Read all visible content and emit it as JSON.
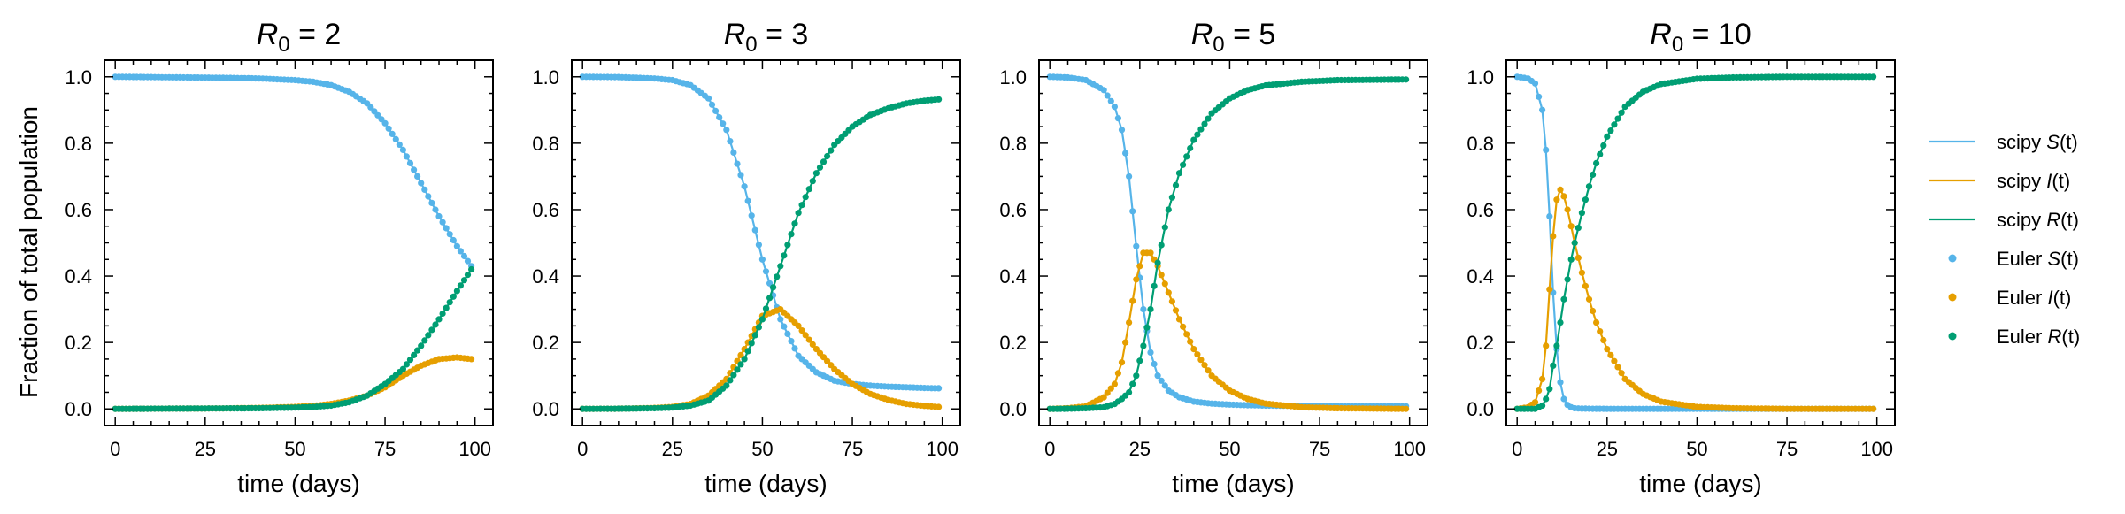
{
  "figure": {
    "ylabel": "Fraction of total population",
    "xlabel": "time (days)"
  },
  "legend": {
    "placement": "right",
    "entries": [
      {
        "prefix": "scipy ",
        "var": "S",
        "suffix": "(t)",
        "marker": "line",
        "color": "#56B4E9"
      },
      {
        "prefix": "scipy ",
        "var": "I",
        "suffix": "(t)",
        "marker": "line",
        "color": "#E69F00"
      },
      {
        "prefix": "scipy ",
        "var": "R",
        "suffix": "(t)",
        "marker": "line",
        "color": "#009E73"
      },
      {
        "prefix": "Euler ",
        "var": "S",
        "suffix": "(t)",
        "marker": "dot",
        "color": "#56B4E9"
      },
      {
        "prefix": "Euler ",
        "var": "I",
        "suffix": "(t)",
        "marker": "dot",
        "color": "#E69F00"
      },
      {
        "prefix": "Euler ",
        "var": "R",
        "suffix": "(t)",
        "marker": "dot",
        "color": "#009E73"
      }
    ]
  },
  "chart_data": [
    {
      "type": "line",
      "title": {
        "sym": "R",
        "sub": "0",
        "rest": " = 2"
      },
      "xlabel": "time (days)",
      "ylabel": "Fraction of total population",
      "xlim": [
        -3,
        105
      ],
      "ylim": [
        -0.05,
        1.05
      ],
      "xticks": [
        0,
        25,
        50,
        75,
        100
      ],
      "yticks": [
        "0.0",
        "0.2",
        "0.4",
        "0.6",
        "0.8",
        "1.0"
      ],
      "x": [
        0,
        10,
        20,
        30,
        40,
        50,
        55,
        60,
        65,
        70,
        75,
        80,
        85,
        90,
        95,
        99
      ],
      "series": [
        {
          "label": "S(t)",
          "color": "#56B4E9",
          "values": [
            1.0,
            0.999,
            0.998,
            0.997,
            0.995,
            0.99,
            0.985,
            0.975,
            0.955,
            0.92,
            0.86,
            0.78,
            0.68,
            0.58,
            0.49,
            0.43
          ]
        },
        {
          "label": "I(t)",
          "color": "#E69F00",
          "values": [
            0.0,
            0.0005,
            0.001,
            0.0015,
            0.003,
            0.006,
            0.009,
            0.015,
            0.025,
            0.04,
            0.065,
            0.1,
            0.13,
            0.15,
            0.155,
            0.15
          ]
        },
        {
          "label": "R(t)",
          "color": "#009E73",
          "values": [
            0.0,
            0.0005,
            0.001,
            0.0015,
            0.002,
            0.004,
            0.006,
            0.01,
            0.02,
            0.04,
            0.075,
            0.12,
            0.19,
            0.27,
            0.355,
            0.42
          ]
        }
      ]
    },
    {
      "type": "line",
      "title": {
        "sym": "R",
        "sub": "0",
        "rest": " = 3"
      },
      "xlabel": "time (days)",
      "xlim": [
        -3,
        105
      ],
      "ylim": [
        -0.05,
        1.05
      ],
      "xticks": [
        0,
        25,
        50,
        75,
        100
      ],
      "yticks": [
        "0.0",
        "0.2",
        "0.4",
        "0.6",
        "0.8",
        "1.0"
      ],
      "x": [
        0,
        10,
        20,
        25,
        30,
        35,
        40,
        45,
        50,
        55,
        60,
        65,
        70,
        75,
        80,
        85,
        90,
        95,
        99
      ],
      "series": [
        {
          "label": "S(t)",
          "color": "#56B4E9",
          "values": [
            1.0,
            0.999,
            0.995,
            0.99,
            0.975,
            0.935,
            0.84,
            0.67,
            0.45,
            0.27,
            0.16,
            0.11,
            0.085,
            0.075,
            0.07,
            0.067,
            0.065,
            0.063,
            0.062
          ]
        },
        {
          "label": "I(t)",
          "color": "#E69F00",
          "values": [
            0.0,
            0.0005,
            0.003,
            0.006,
            0.015,
            0.04,
            0.09,
            0.18,
            0.28,
            0.3,
            0.25,
            0.18,
            0.12,
            0.075,
            0.045,
            0.027,
            0.015,
            0.009,
            0.006
          ]
        },
        {
          "label": "R(t)",
          "color": "#009E73",
          "values": [
            0.0,
            0.0005,
            0.002,
            0.004,
            0.01,
            0.025,
            0.07,
            0.15,
            0.27,
            0.43,
            0.59,
            0.71,
            0.795,
            0.85,
            0.885,
            0.905,
            0.92,
            0.928,
            0.932
          ]
        }
      ]
    },
    {
      "type": "line",
      "title": {
        "sym": "R",
        "sub": "0",
        "rest": " = 5"
      },
      "xlabel": "time (days)",
      "xlim": [
        -3,
        105
      ],
      "ylim": [
        -0.05,
        1.05
      ],
      "xticks": [
        0,
        25,
        50,
        75,
        100
      ],
      "yticks": [
        "0.0",
        "0.2",
        "0.4",
        "0.6",
        "0.8",
        "1.0"
      ],
      "x": [
        0,
        5,
        10,
        15,
        18,
        20,
        22,
        24,
        26,
        28,
        30,
        33,
        36,
        40,
        45,
        50,
        55,
        60,
        70,
        80,
        90,
        99
      ],
      "series": [
        {
          "label": "S(t)",
          "color": "#56B4E9",
          "values": [
            1.0,
            0.998,
            0.99,
            0.96,
            0.91,
            0.84,
            0.7,
            0.49,
            0.3,
            0.17,
            0.1,
            0.055,
            0.035,
            0.022,
            0.016,
            0.013,
            0.011,
            0.01,
            0.009,
            0.008,
            0.008,
            0.008
          ]
        },
        {
          "label": "I(t)",
          "color": "#E69F00",
          "values": [
            0.0,
            0.002,
            0.008,
            0.035,
            0.075,
            0.14,
            0.26,
            0.39,
            0.47,
            0.47,
            0.43,
            0.35,
            0.27,
            0.18,
            0.1,
            0.055,
            0.03,
            0.016,
            0.005,
            0.002,
            0.001,
            0.0
          ]
        },
        {
          "label": "R(t)",
          "color": "#009E73",
          "values": [
            0.0,
            0.0005,
            0.002,
            0.005,
            0.015,
            0.03,
            0.05,
            0.1,
            0.19,
            0.3,
            0.44,
            0.6,
            0.71,
            0.81,
            0.89,
            0.935,
            0.96,
            0.974,
            0.985,
            0.99,
            0.991,
            0.992
          ]
        }
      ]
    },
    {
      "type": "line",
      "title": {
        "sym": "R",
        "sub": "0",
        "rest": " = 10"
      },
      "xlabel": "time (days)",
      "xlim": [
        -3,
        105
      ],
      "ylim": [
        -0.05,
        1.05
      ],
      "xticks": [
        0,
        25,
        50,
        75,
        100
      ],
      "yticks": [
        "0.0",
        "0.2",
        "0.4",
        "0.6",
        "0.8",
        "1.0"
      ],
      "x": [
        0,
        3,
        5,
        7,
        8,
        9,
        10,
        11,
        12,
        13,
        14,
        15,
        16,
        18,
        20,
        22,
        25,
        30,
        35,
        40,
        50,
        60,
        75,
        99
      ],
      "series": [
        {
          "label": "S(t)",
          "color": "#56B4E9",
          "values": [
            1.0,
            0.995,
            0.98,
            0.9,
            0.78,
            0.58,
            0.35,
            0.18,
            0.08,
            0.03,
            0.012,
            0.005,
            0.002,
            0.001,
            0.0005,
            0.0003,
            0.0002,
            0.0001,
            0.0001,
            0.0001,
            0.0001,
            0.0,
            0.0,
            0.0
          ]
        },
        {
          "label": "I(t)",
          "color": "#E69F00",
          "values": [
            0.0,
            0.005,
            0.02,
            0.09,
            0.19,
            0.36,
            0.52,
            0.63,
            0.66,
            0.64,
            0.6,
            0.55,
            0.5,
            0.41,
            0.33,
            0.26,
            0.18,
            0.09,
            0.045,
            0.022,
            0.006,
            0.002,
            0.0,
            0.0
          ]
        },
        {
          "label": "R(t)",
          "color": "#009E73",
          "values": [
            0.0,
            0.0,
            0.0,
            0.01,
            0.03,
            0.06,
            0.13,
            0.19,
            0.26,
            0.33,
            0.39,
            0.45,
            0.5,
            0.59,
            0.67,
            0.74,
            0.82,
            0.91,
            0.955,
            0.978,
            0.994,
            0.998,
            1.0,
            1.0
          ]
        }
      ]
    }
  ]
}
